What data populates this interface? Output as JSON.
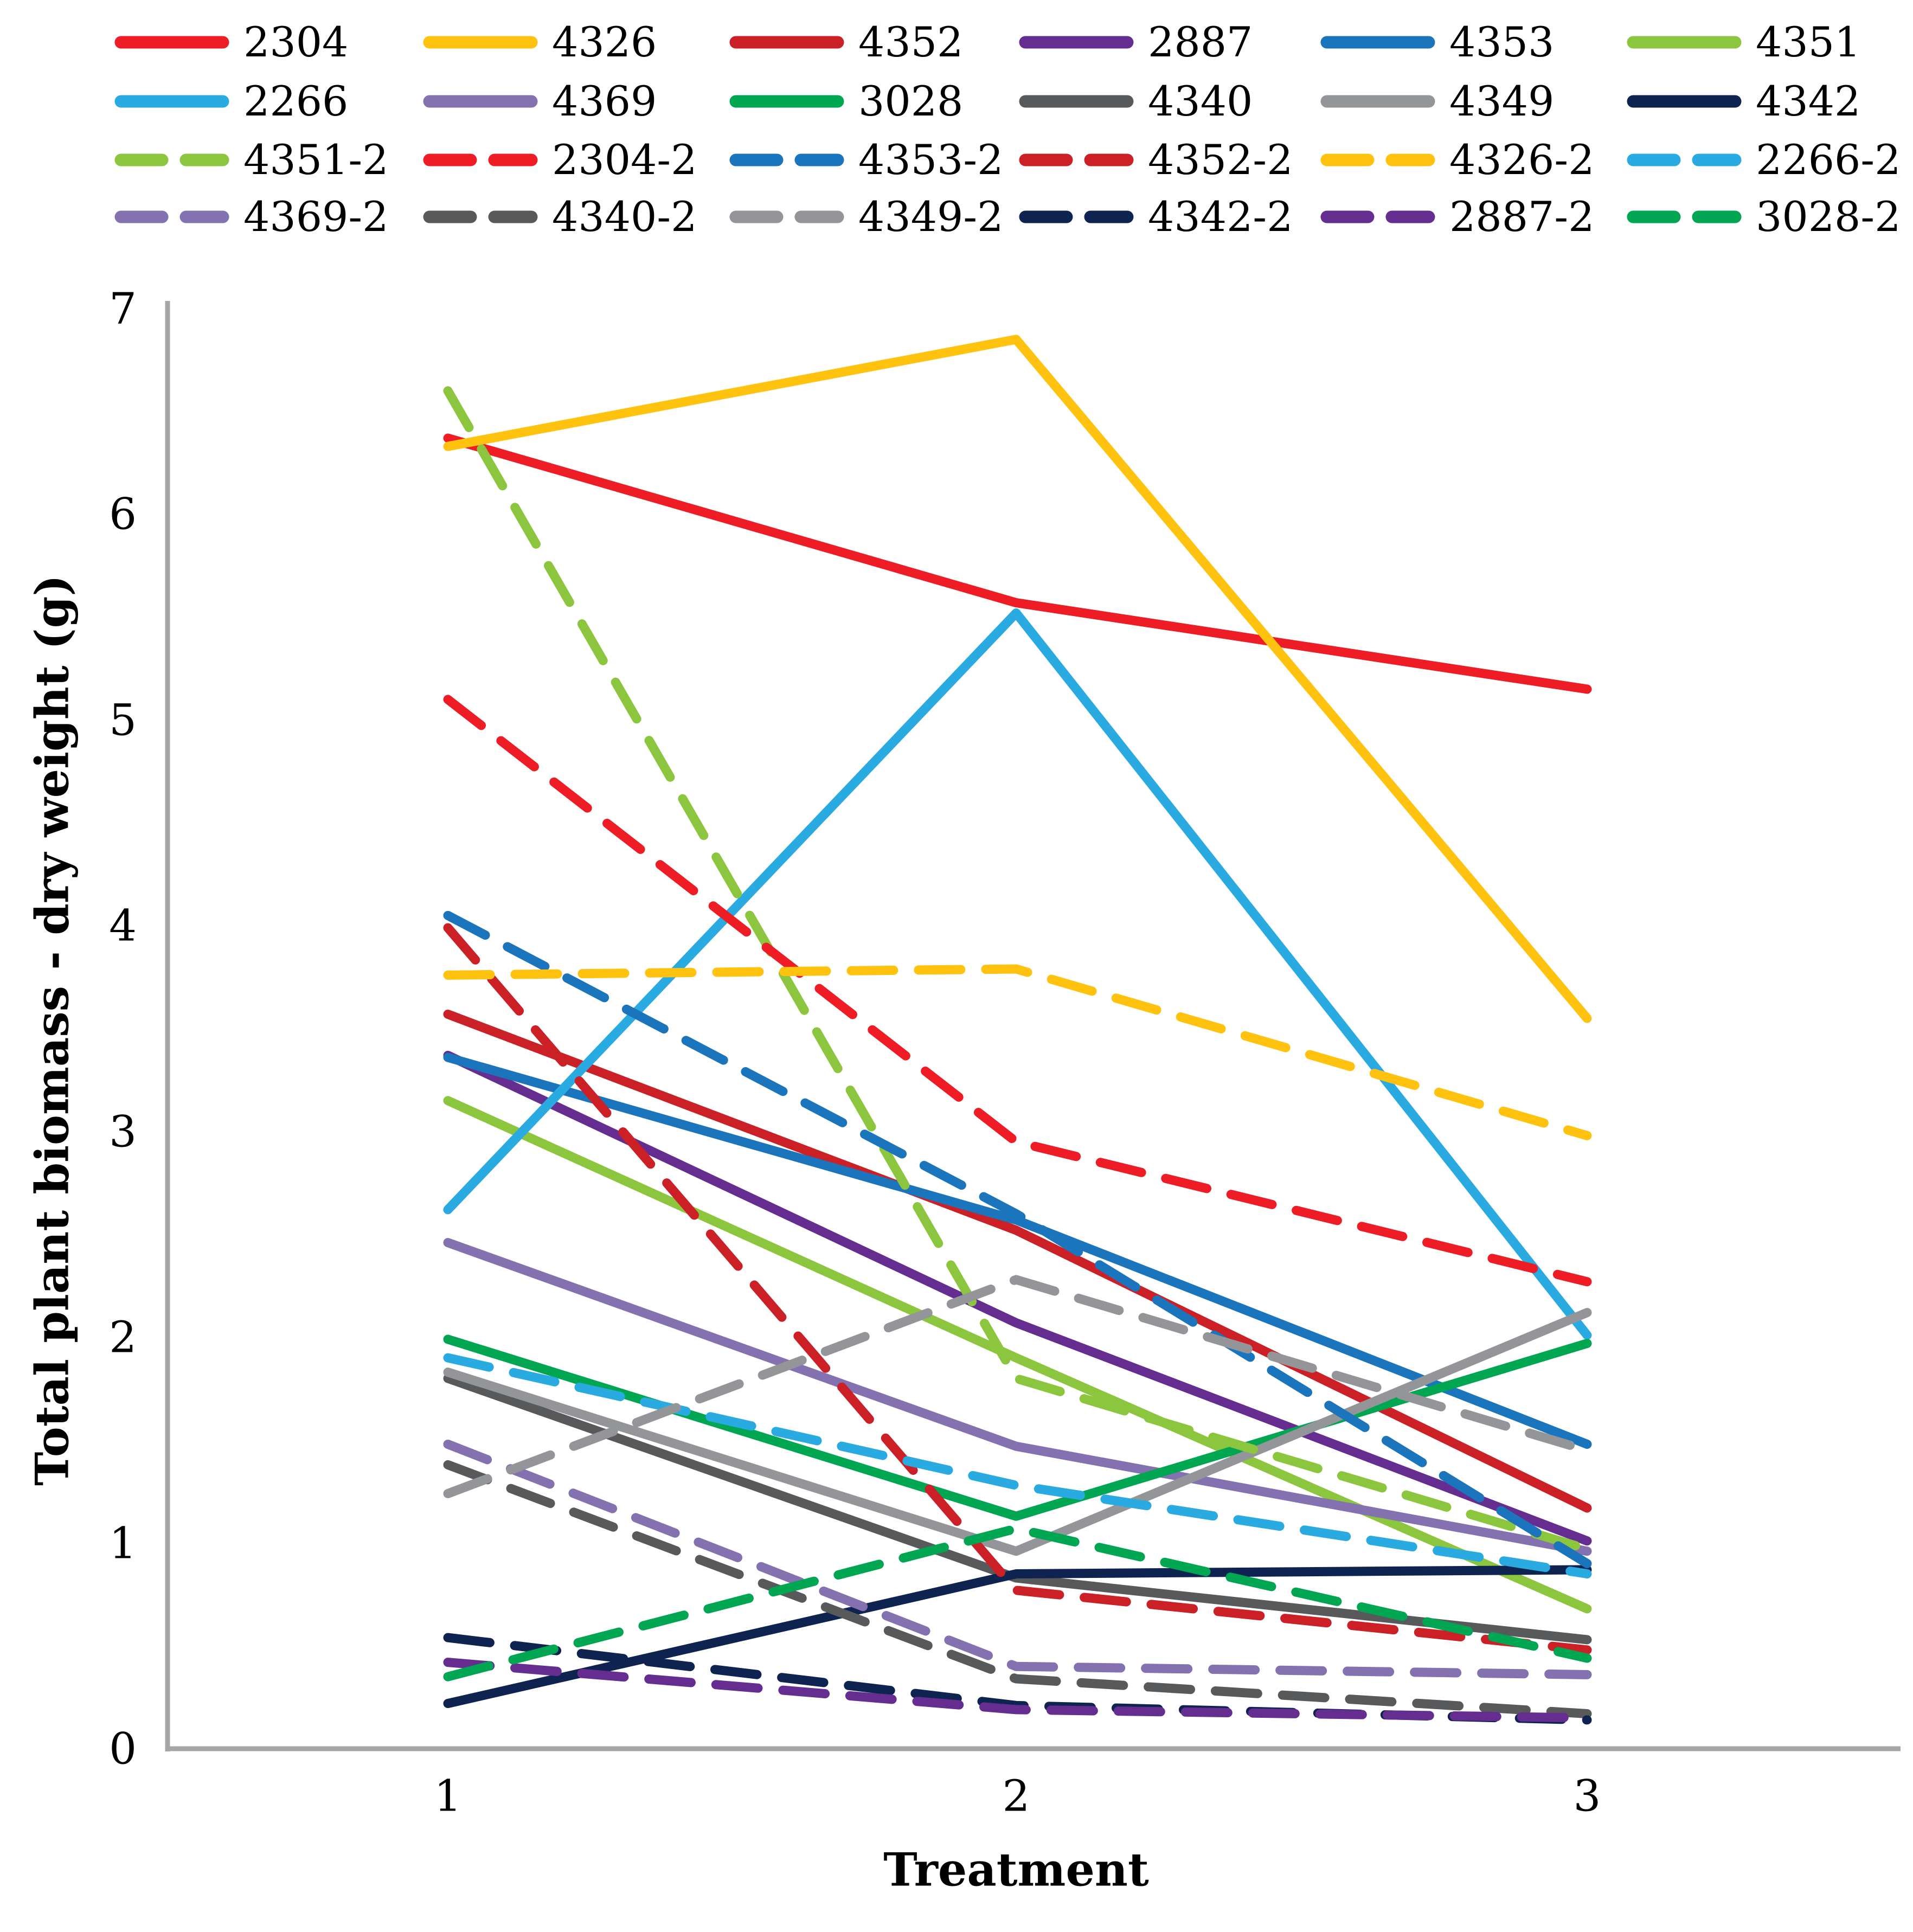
{
  "chart_data": {
    "type": "line",
    "title": "",
    "xlabel": "Treatment",
    "ylabel": "Total plant biomass - dry weight (g)",
    "x": [
      1,
      2,
      3
    ],
    "xticklabels": [
      "1",
      "2",
      "3"
    ],
    "yticks": [
      0,
      1,
      2,
      3,
      4,
      5,
      6,
      7
    ],
    "ylim": [
      0,
      7
    ],
    "grid": false,
    "legend_position": "top",
    "axis_color": "#A6A6A6",
    "series": [
      {
        "name": "2304",
        "color": "#EE1C25",
        "style": "solid",
        "values": [
          6.37,
          5.57,
          5.15
        ]
      },
      {
        "name": "4326",
        "color": "#FFC20E",
        "style": "solid",
        "values": [
          6.33,
          6.85,
          3.55
        ]
      },
      {
        "name": "4352",
        "color": "#CB2026",
        "style": "solid",
        "values": [
          3.57,
          2.52,
          1.17
        ]
      },
      {
        "name": "2887",
        "color": "#662D91",
        "style": "solid",
        "values": [
          3.37,
          2.07,
          1.01
        ]
      },
      {
        "name": "4353",
        "color": "#1B75BC",
        "style": "solid",
        "values": [
          3.36,
          2.57,
          1.48
        ]
      },
      {
        "name": "4351",
        "color": "#8CC63F",
        "style": "solid",
        "values": [
          3.15,
          1.9,
          0.68
        ]
      },
      {
        "name": "2266",
        "color": "#29ABE2",
        "style": "solid",
        "values": [
          2.62,
          5.52,
          2.01
        ]
      },
      {
        "name": "4369",
        "color": "#8471B0",
        "style": "solid",
        "values": [
          2.46,
          1.47,
          0.96
        ]
      },
      {
        "name": "3028",
        "color": "#00A651",
        "style": "solid",
        "values": [
          1.99,
          1.13,
          1.97
        ]
      },
      {
        "name": "4340",
        "color": "#58595B",
        "style": "solid",
        "values": [
          1.8,
          0.83,
          0.53
        ]
      },
      {
        "name": "4349",
        "color": "#949599",
        "style": "solid",
        "values": [
          1.83,
          0.96,
          2.12
        ]
      },
      {
        "name": "4342",
        "color": "#0F2350",
        "style": "solid",
        "values": [
          0.22,
          0.85,
          0.87
        ]
      },
      {
        "name": "4351-2",
        "color": "#8CC63F",
        "style": "dashed",
        "values": [
          6.6,
          1.8,
          0.97
        ]
      },
      {
        "name": "2304-2",
        "color": "#EE1C25",
        "style": "dashed",
        "values": [
          5.1,
          2.95,
          2.27
        ]
      },
      {
        "name": "4353-2",
        "color": "#1B75BC",
        "style": "dashed",
        "values": [
          4.05,
          2.6,
          0.9
        ]
      },
      {
        "name": "4352-2",
        "color": "#CB2026",
        "style": "dashed",
        "values": [
          3.99,
          0.77,
          0.48
        ]
      },
      {
        "name": "4326-2",
        "color": "#FFC20E",
        "style": "dashed",
        "values": [
          3.76,
          3.79,
          2.98
        ]
      },
      {
        "name": "2266-2",
        "color": "#29ABE2",
        "style": "dashed",
        "values": [
          1.9,
          1.28,
          0.85
        ]
      },
      {
        "name": "4369-2",
        "color": "#8471B0",
        "style": "dashed",
        "values": [
          1.48,
          0.4,
          0.36
        ]
      },
      {
        "name": "4340-2",
        "color": "#58595B",
        "style": "dashed",
        "values": [
          1.38,
          0.34,
          0.17
        ]
      },
      {
        "name": "4349-2",
        "color": "#949599",
        "style": "dashed",
        "values": [
          1.24,
          2.28,
          1.45
        ]
      },
      {
        "name": "4342-2",
        "color": "#0F2350",
        "style": "dashed",
        "values": [
          0.54,
          0.21,
          0.14
        ]
      },
      {
        "name": "2887-2",
        "color": "#662D91",
        "style": "dashed",
        "values": [
          0.42,
          0.19,
          0.15
        ]
      },
      {
        "name": "3028-2",
        "color": "#00A651",
        "style": "dashed",
        "values": [
          0.35,
          1.07,
          0.44
        ]
      }
    ],
    "legend_rows": [
      [
        "2304",
        "4326",
        "4352",
        "2887",
        "4353",
        "4351"
      ],
      [
        "2266",
        "4369",
        "3028",
        "4340",
        "4349",
        "4342"
      ],
      [
        "4351-2",
        "2304-2",
        "4353-2",
        "4352-2",
        "4326-2",
        "2266-2"
      ],
      [
        "4369-2",
        "4340-2",
        "4349-2",
        "4342-2",
        "2887-2",
        "3028-2"
      ]
    ]
  }
}
